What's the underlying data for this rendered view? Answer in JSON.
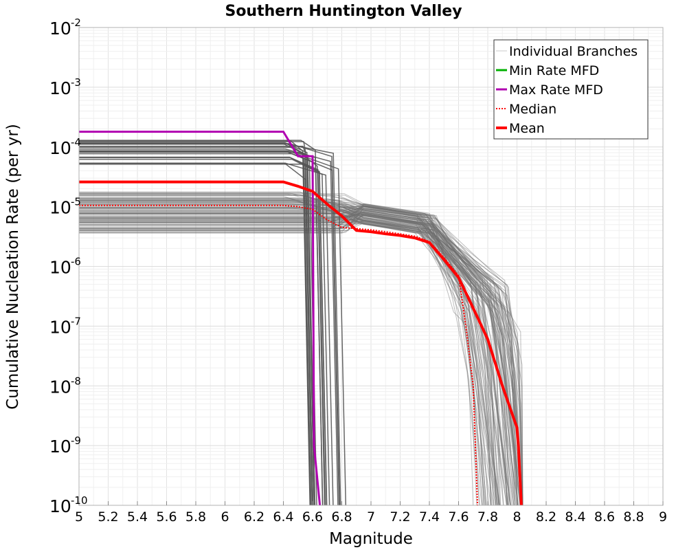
{
  "chart_data": {
    "type": "line",
    "title": "Southern Huntington Valley",
    "xlabel": "Magnitude",
    "ylabel": "Cumulative Nucleation Rate (per yr)",
    "xlim": [
      5,
      9
    ],
    "ylim": [
      1e-10,
      0.01
    ],
    "yscale": "log",
    "grid": true,
    "legend_position": "top-right",
    "x_ticks": [
      "5",
      "5.2",
      "5.4",
      "5.6",
      "5.8",
      "6",
      "6.2",
      "6.4",
      "6.6",
      "6.8",
      "7",
      "7.2",
      "7.4",
      "7.6",
      "7.8",
      "8",
      "8.2",
      "8.4",
      "8.6",
      "8.8",
      "9"
    ],
    "y_ticks": [
      {
        "base": "10",
        "exp": "-2"
      },
      {
        "base": "10",
        "exp": "-3"
      },
      {
        "base": "10",
        "exp": "-4"
      },
      {
        "base": "10",
        "exp": "-5"
      },
      {
        "base": "10",
        "exp": "-6"
      },
      {
        "base": "10",
        "exp": "-7"
      },
      {
        "base": "10",
        "exp": "-8"
      },
      {
        "base": "10",
        "exp": "-9"
      },
      {
        "base": "10",
        "exp": "-10"
      }
    ],
    "legend": [
      {
        "label": "Individual Branches",
        "color": "#c8c8c8",
        "style": "thin"
      },
      {
        "label": "Min Rate MFD",
        "color": "#00b000",
        "style": "solid"
      },
      {
        "label": "Max Rate MFD",
        "color": "#b000b0",
        "style": "solid"
      },
      {
        "label": "Median",
        "color": "#ff0000",
        "style": "dotted"
      },
      {
        "label": "Mean",
        "color": "#ff0000",
        "style": "thick"
      }
    ],
    "series": [
      {
        "name": "Max Rate MFD",
        "color": "#b000b0",
        "style": "solid",
        "x": [
          5.0,
          6.4,
          6.5,
          6.6,
          6.61,
          6.65
        ],
        "y": [
          0.00018,
          0.00018,
          7e-05,
          7e-05,
          1e-09,
          1e-10
        ]
      },
      {
        "name": "Mean",
        "color": "#ff0000",
        "style": "thick",
        "x": [
          5.0,
          6.4,
          6.5,
          6.6,
          6.7,
          6.8,
          6.9,
          7.0,
          7.1,
          7.2,
          7.3,
          7.4,
          7.5,
          7.6,
          7.7,
          7.8,
          7.9,
          8.0,
          8.01,
          8.03
        ],
        "y": [
          2.6e-05,
          2.6e-05,
          2.2e-05,
          1.8e-05,
          1.1e-05,
          7e-06,
          4e-06,
          3.8e-06,
          3.5e-06,
          3.3e-06,
          3e-06,
          2.5e-06,
          1.3e-06,
          6.5e-07,
          2e-07,
          6e-08,
          1e-08,
          2e-09,
          1e-09,
          1e-10
        ]
      },
      {
        "name": "Median",
        "color": "#ff0000",
        "style": "dotted",
        "x": [
          5.0,
          6.4,
          6.5,
          6.6,
          6.7,
          6.8,
          6.9,
          7.0,
          7.1,
          7.2,
          7.3,
          7.4,
          7.5,
          7.6,
          7.65,
          7.7,
          7.73
        ],
        "y": [
          1.05e-05,
          1.05e-05,
          1e-05,
          9e-06,
          6e-06,
          4.5e-06,
          4.3e-06,
          4.1e-06,
          3.8e-06,
          3.5e-06,
          3.2e-06,
          2.6e-06,
          1.4e-06,
          7e-07,
          1e-07,
          1e-08,
          1e-10
        ]
      }
    ],
    "branches_summary": {
      "name": "Individual Branches",
      "count_drawn": 140,
      "plateau_range_low_mag": [
        3.5e-06,
        0.00015
      ],
      "upper_cutoff_range": [
        6.7,
        8.05
      ]
    }
  }
}
